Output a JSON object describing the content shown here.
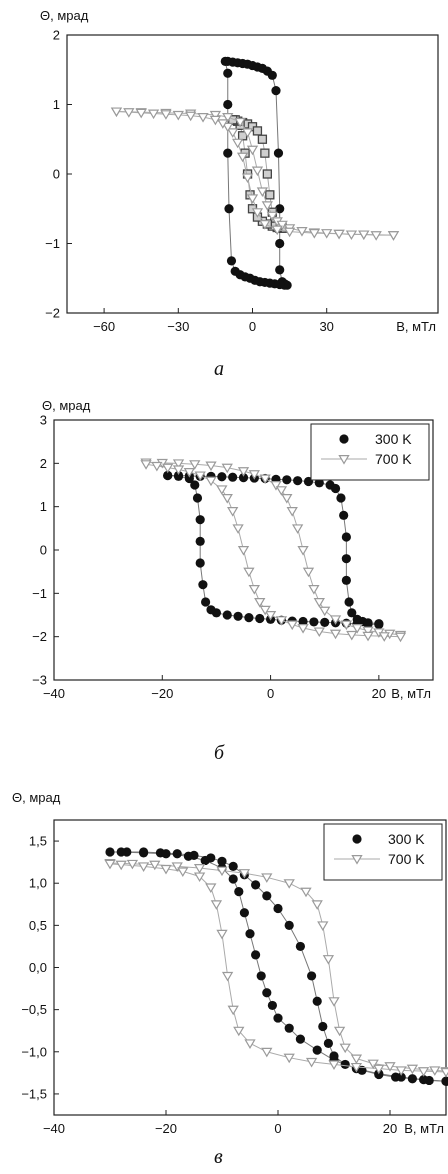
{
  "chart_data": [
    {
      "type": "scatter",
      "caption": "а",
      "ylabel": "Θ, мрад",
      "xlabel": "B, мТл",
      "xlim": [
        -75,
        75
      ],
      "ylim": [
        -2,
        2
      ],
      "xticks": [
        -60,
        -30,
        0,
        30
      ],
      "yticks": [
        -2,
        -1,
        0,
        1,
        2
      ],
      "grid": false,
      "legend": null,
      "series": [
        {
          "marker": "circle",
          "color": "#111111",
          "loops": [
            {
              "x": [
                -10,
                -8,
                -6,
                -4,
                -2,
                0,
                2,
                4,
                6,
                8,
                9.5,
                10.5,
                11,
                11,
                11,
                12,
                13,
                14
              ],
              "y": [
                1.62,
                1.61,
                1.6,
                1.59,
                1.58,
                1.56,
                1.54,
                1.52,
                1.48,
                1.42,
                1.2,
                0.3,
                -0.5,
                -1.0,
                -1.38,
                -1.55,
                -1.58,
                -1.6
              ]
            },
            {
              "x": [
                13,
                11,
                9,
                7,
                5,
                3,
                1,
                -1,
                -3,
                -5,
                -7,
                -8.5,
                -9.5,
                -10,
                -10,
                -10,
                -11
              ],
              "y": [
                -1.6,
                -1.59,
                -1.58,
                -1.57,
                -1.56,
                -1.55,
                -1.53,
                -1.5,
                -1.48,
                -1.45,
                -1.4,
                -1.25,
                -0.5,
                0.3,
                1.0,
                1.45,
                1.62
              ]
            }
          ]
        },
        {
          "marker": "square",
          "color": "#444444",
          "loops": [
            {
              "x": [
                -8,
                -6,
                -4,
                -2,
                0,
                2,
                4,
                5,
                6,
                7,
                8,
                9,
                10,
                11,
                12
              ],
              "y": [
                0.77,
                0.76,
                0.74,
                0.72,
                0.68,
                0.62,
                0.5,
                0.3,
                0.0,
                -0.3,
                -0.55,
                -0.7,
                -0.76,
                -0.78,
                -0.78
              ]
            },
            {
              "x": [
                12,
                10,
                8,
                6,
                4,
                2,
                0,
                -1,
                -2,
                -3,
                -4,
                -5,
                -6,
                -7,
                -8
              ],
              "y": [
                -0.78,
                -0.77,
                -0.75,
                -0.72,
                -0.68,
                -0.62,
                -0.5,
                -0.3,
                0.0,
                0.3,
                0.55,
                0.7,
                0.76,
                0.78,
                0.78
              ]
            }
          ]
        },
        {
          "marker": "triangle-down",
          "color": "#9a9a9a",
          "loops": [
            {
              "x": [
                -55,
                -45,
                -35,
                -25,
                -15,
                -10,
                -5,
                -2,
                0,
                2,
                4,
                6,
                8,
                10,
                12,
                15,
                20,
                25,
                30,
                35,
                40,
                45,
                50,
                57
              ],
              "y": [
                0.9,
                0.89,
                0.88,
                0.87,
                0.85,
                0.82,
                0.75,
                0.6,
                0.35,
                0.05,
                -0.25,
                -0.45,
                -0.6,
                -0.68,
                -0.73,
                -0.78,
                -0.82,
                -0.84,
                -0.85,
                -0.86,
                -0.87,
                -0.87,
                -0.88,
                -0.88
              ]
            },
            {
              "x": [
                57,
                45,
                35,
                25,
                15,
                10,
                5,
                2,
                0,
                -2,
                -4,
                -6,
                -8,
                -10,
                -12,
                -15,
                -20,
                -25,
                -30,
                -35,
                -40,
                -45,
                -50,
                -55
              ],
              "y": [
                -0.88,
                -0.87,
                -0.86,
                -0.85,
                -0.83,
                -0.8,
                -0.72,
                -0.55,
                -0.35,
                -0.05,
                0.25,
                0.45,
                0.6,
                0.68,
                0.73,
                0.78,
                0.82,
                0.84,
                0.85,
                0.86,
                0.87,
                0.88,
                0.89,
                0.9
              ]
            }
          ]
        }
      ]
    },
    {
      "type": "scatter",
      "caption": "б",
      "ylabel": "Θ, мрад",
      "xlabel": "B, мТл",
      "xlim": [
        -40,
        30
      ],
      "ylim": [
        -3,
        3
      ],
      "xticks": [
        -40,
        -20,
        0,
        20
      ],
      "yticks": [
        -3,
        -2,
        -1,
        0,
        1,
        2,
        3
      ],
      "grid": false,
      "legend": "top-right",
      "series": [
        {
          "name": "300 K",
          "marker": "circle",
          "color": "#111111",
          "loops": [
            {
              "x": [
                -19,
                -17,
                -15,
                -13,
                -11,
                -9,
                -7,
                -5,
                -3,
                -1,
                1,
                3,
                5,
                7,
                9,
                11,
                12,
                13,
                13.5,
                14,
                14,
                14,
                14.5,
                15,
                16,
                17,
                18,
                20
              ],
              "y": [
                1.72,
                1.72,
                1.71,
                1.7,
                1.7,
                1.69,
                1.68,
                1.67,
                1.66,
                1.65,
                1.63,
                1.62,
                1.6,
                1.58,
                1.55,
                1.5,
                1.42,
                1.2,
                0.8,
                0.3,
                -0.2,
                -0.7,
                -1.2,
                -1.45,
                -1.6,
                -1.65,
                -1.68,
                -1.7
              ]
            },
            {
              "x": [
                20,
                18,
                16,
                14,
                12,
                10,
                8,
                6,
                4,
                2,
                0,
                -2,
                -4,
                -6,
                -8,
                -10,
                -11,
                -12,
                -12.5,
                -13,
                -13,
                -13,
                -13.5,
                -14,
                -15,
                -17,
                -19
              ],
              "y": [
                -1.72,
                -1.71,
                -1.7,
                -1.69,
                -1.68,
                -1.67,
                -1.66,
                -1.65,
                -1.64,
                -1.62,
                -1.6,
                -1.58,
                -1.56,
                -1.53,
                -1.5,
                -1.45,
                -1.38,
                -1.2,
                -0.8,
                -0.3,
                0.2,
                0.7,
                1.2,
                1.5,
                1.65,
                1.7,
                1.72
              ]
            }
          ]
        },
        {
          "name": "700 K",
          "marker": "triangle-down",
          "color": "#9a9a9a",
          "loops": [
            {
              "x": [
                -23,
                -20,
                -17,
                -14,
                -11,
                -8,
                -5,
                -3,
                -1,
                1,
                2,
                3,
                4,
                5,
                6,
                7,
                8,
                9,
                10,
                12,
                14,
                16,
                18,
                20,
                22,
                24
              ],
              "y": [
                2.02,
                2.01,
                2.0,
                1.98,
                1.95,
                1.9,
                1.82,
                1.75,
                1.65,
                1.5,
                1.38,
                1.2,
                0.9,
                0.5,
                0.0,
                -0.5,
                -0.9,
                -1.2,
                -1.4,
                -1.6,
                -1.72,
                -1.8,
                -1.86,
                -1.9,
                -1.93,
                -1.96
              ]
            },
            {
              "x": [
                24,
                21,
                18,
                15,
                12,
                9,
                6,
                4,
                2,
                0,
                -1,
                -2,
                -3,
                -4,
                -5,
                -6,
                -7,
                -8,
                -9,
                -11,
                -13,
                -15,
                -17,
                -19,
                -21,
                -23
              ],
              "y": [
                -2.0,
                -1.99,
                -1.98,
                -1.96,
                -1.93,
                -1.88,
                -1.8,
                -1.72,
                -1.62,
                -1.5,
                -1.38,
                -1.2,
                -0.9,
                -0.5,
                0.0,
                0.5,
                0.9,
                1.2,
                1.4,
                1.6,
                1.72,
                1.8,
                1.86,
                1.9,
                1.94,
                1.98
              ]
            }
          ]
        }
      ]
    },
    {
      "type": "scatter",
      "caption": "в",
      "ylabel": "Θ, мрад",
      "xlabel": "B, мТл",
      "xlim": [
        -40,
        30
      ],
      "ylim": [
        -1.75,
        1.75
      ],
      "xticks": [
        -40,
        -20,
        0,
        20
      ],
      "yticks": [
        -1.5,
        -1.0,
        -0.5,
        0.0,
        0.5,
        1.0,
        1.5
      ],
      "yticklabels": [
        "-1,5",
        "-1,0",
        "-0,5",
        "0,0",
        "0,5",
        "1,0",
        "1,5"
      ],
      "ytick_label_prefix_hidden": true,
      "grid": false,
      "legend": "top-right",
      "series": [
        {
          "name": "300 K",
          "marker": "circle",
          "color": "#111111",
          "loops": [
            {
              "x": [
                -30,
                -27,
                -24,
                -21,
                -18,
                -15,
                -12,
                -10,
                -8,
                -6,
                -4,
                -2,
                0,
                2,
                4,
                6,
                7,
                8,
                9,
                10,
                12,
                15,
                18,
                21,
                24,
                27,
                30
              ],
              "y": [
                1.37,
                1.37,
                1.37,
                1.36,
                1.35,
                1.33,
                1.3,
                1.26,
                1.2,
                1.1,
                0.98,
                0.85,
                0.7,
                0.5,
                0.25,
                -0.1,
                -0.4,
                -0.7,
                -0.9,
                -1.05,
                -1.15,
                -1.22,
                -1.27,
                -1.3,
                -1.32,
                -1.34,
                -1.35
              ]
            },
            {
              "x": [
                30,
                26,
                22,
                18,
                14,
                10,
                7,
                4,
                2,
                0,
                -1,
                -2,
                -3,
                -4,
                -5,
                -6,
                -7,
                -8,
                -10,
                -13,
                -16,
                -20,
                -24,
                -28
              ],
              "y": [
                -1.35,
                -1.33,
                -1.3,
                -1.26,
                -1.2,
                -1.1,
                -0.98,
                -0.85,
                -0.72,
                -0.6,
                -0.45,
                -0.3,
                -0.1,
                0.15,
                0.4,
                0.65,
                0.9,
                1.05,
                1.18,
                1.27,
                1.32,
                1.35,
                1.36,
                1.37
              ]
            }
          ]
        },
        {
          "name": "700 K",
          "marker": "triangle-down",
          "color": "#9a9a9a",
          "loops": [
            {
              "x": [
                -30,
                -26,
                -22,
                -18,
                -14,
                -10,
                -6,
                -2,
                2,
                5,
                7,
                8,
                9,
                10,
                11,
                12,
                14,
                17,
                20,
                24,
                28,
                30
              ],
              "y": [
                1.24,
                1.23,
                1.22,
                1.2,
                1.18,
                1.15,
                1.12,
                1.07,
                1.0,
                0.9,
                0.75,
                0.5,
                0.1,
                -0.4,
                -0.75,
                -0.95,
                -1.08,
                -1.14,
                -1.17,
                -1.2,
                -1.22,
                -1.23
              ]
            },
            {
              "x": [
                30,
                26,
                22,
                18,
                14,
                10,
                6,
                2,
                -2,
                -5,
                -7,
                -8,
                -9,
                -10,
                -11,
                -12,
                -14,
                -17,
                -20,
                -24,
                -28,
                -30
              ],
              "y": [
                -1.24,
                -1.23,
                -1.22,
                -1.2,
                -1.18,
                -1.15,
                -1.12,
                -1.07,
                -1.0,
                -0.9,
                -0.75,
                -0.5,
                -0.1,
                0.4,
                0.75,
                0.95,
                1.08,
                1.14,
                1.17,
                1.2,
                1.22,
                1.23
              ]
            }
          ]
        }
      ]
    }
  ]
}
